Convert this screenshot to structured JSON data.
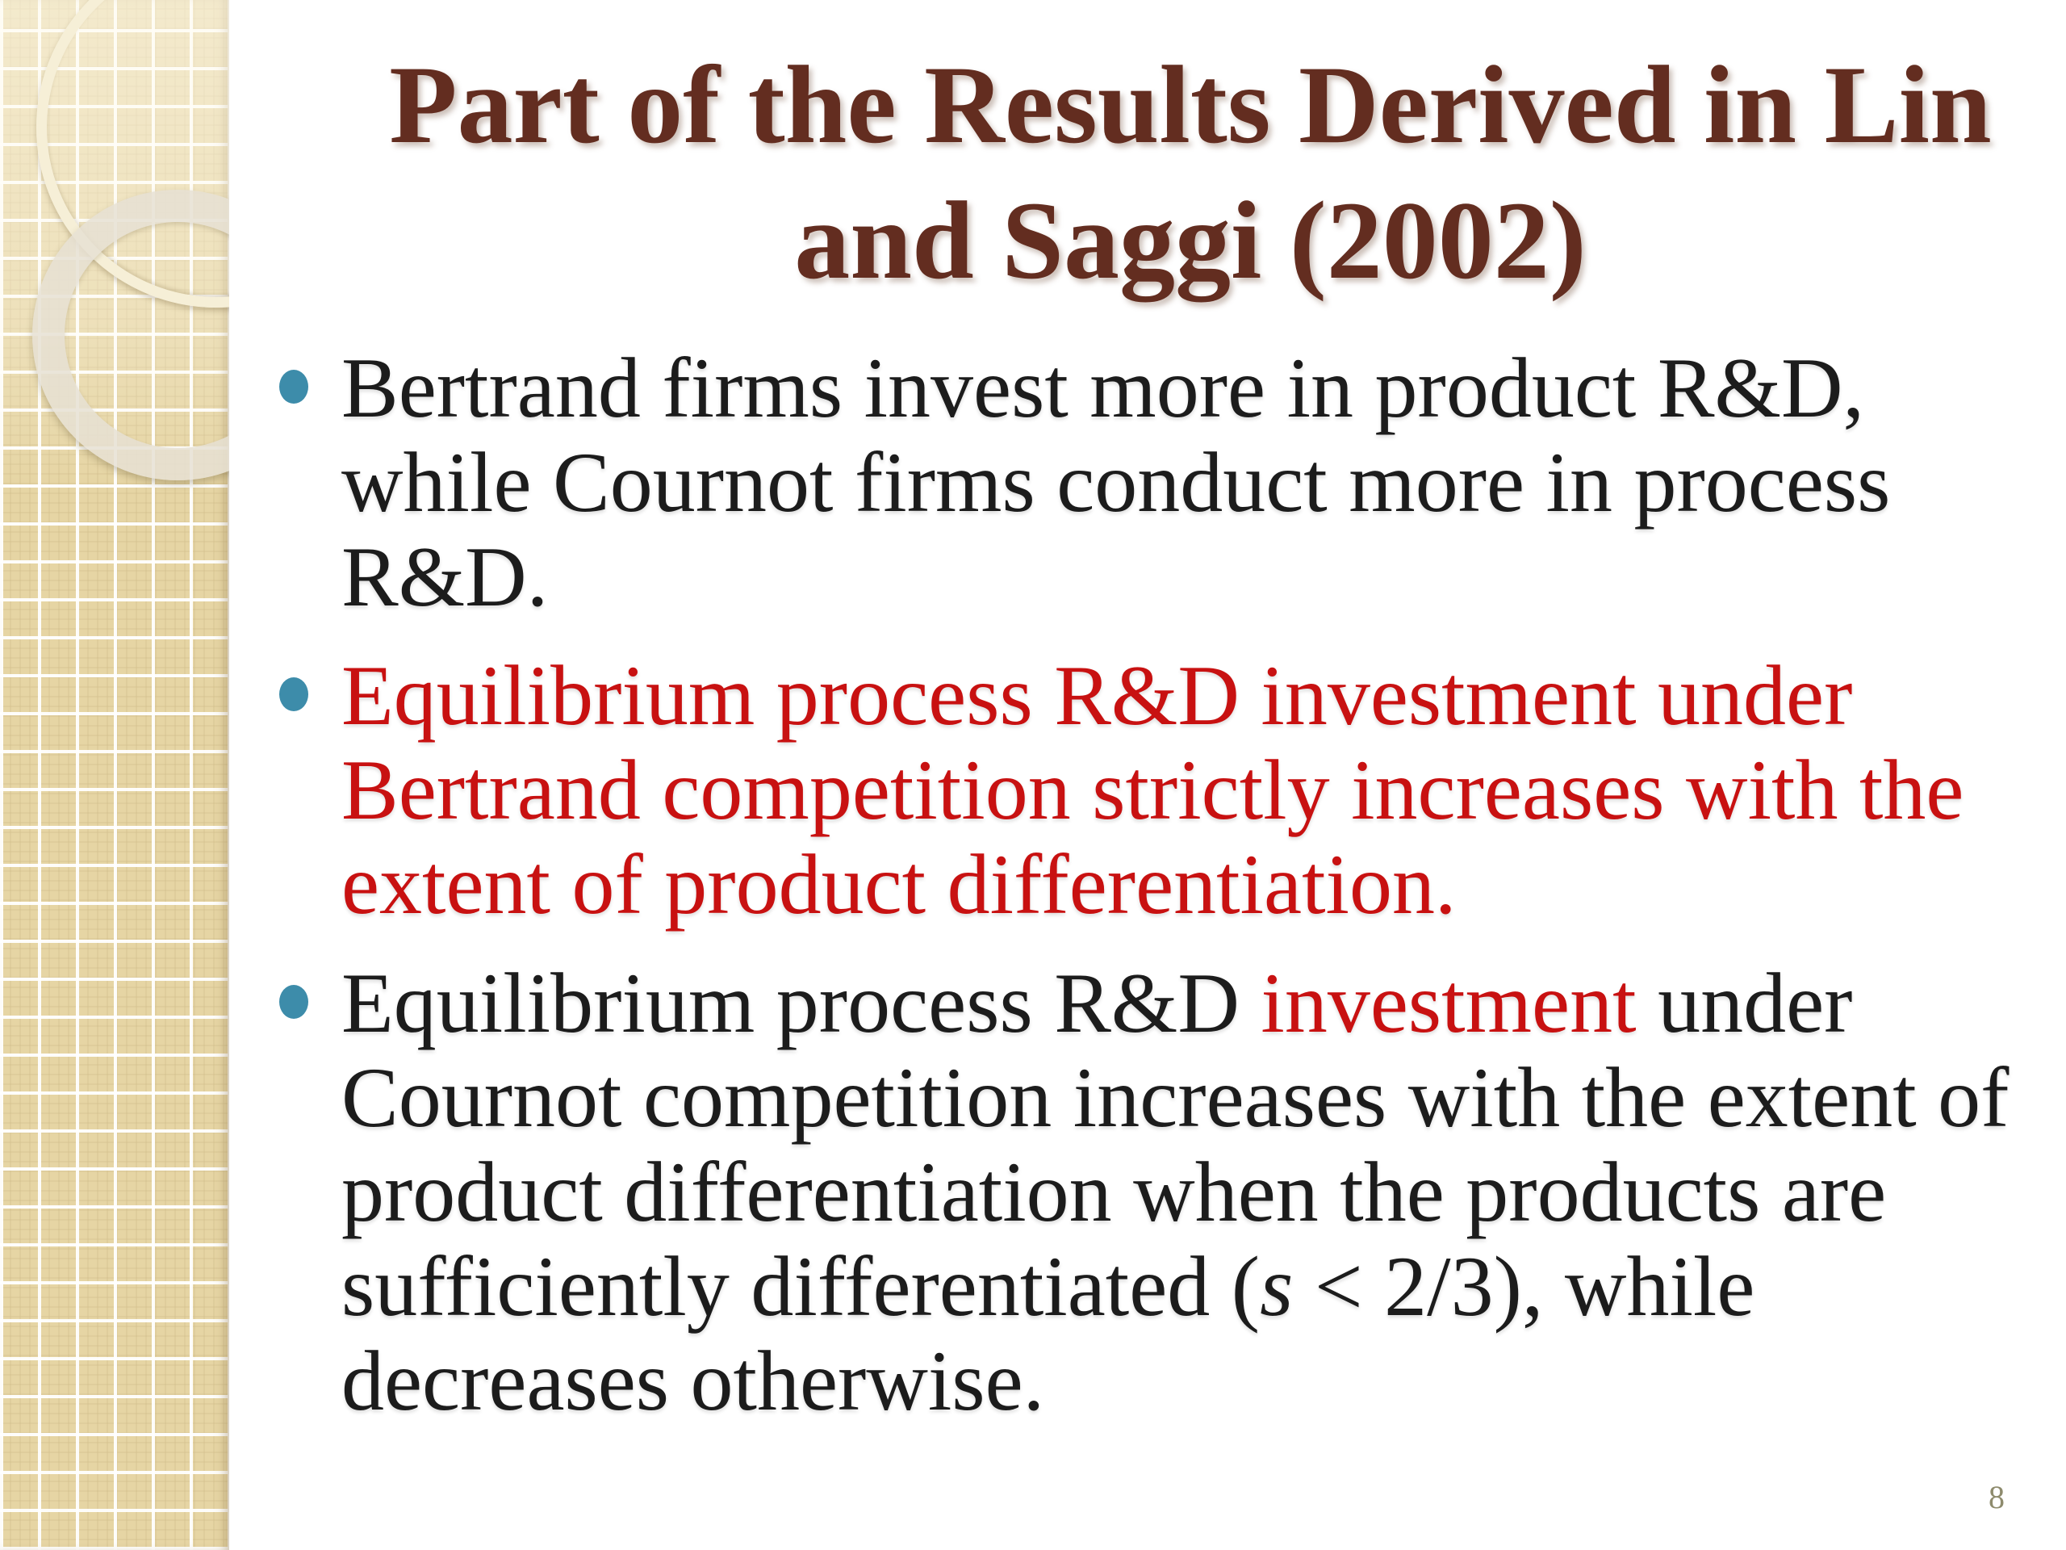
{
  "slide": {
    "title_line1": "Part of the Results Derived in Lin",
    "title_line2": "and Saggi (2002)",
    "page_number": "8",
    "colors": {
      "title": "#632d20",
      "body": "#1c1c1c",
      "red": "#c81111",
      "bullet": "#3d8caa",
      "sidebar_tan": "#e6d5a4",
      "page_number": "#8e8b6d"
    },
    "bullets": [
      {
        "segments": [
          {
            "text": "Bertrand firms invest more in product R&D, while Cournot firms conduct more in process R&D.",
            "color": "body"
          }
        ]
      },
      {
        "segments": [
          {
            "text": "Equilibrium process R&D investment under Bertrand competition strictly increases with the extent of product differentiation.",
            "color": "red"
          }
        ]
      },
      {
        "segments": [
          {
            "text": "Equilibrium process R&D ",
            "color": "body"
          },
          {
            "text": "investment",
            "color": "red"
          },
          {
            "text": " under Cournot competition increases with the extent of product differentiation when the products are sufficiently differentiated (",
            "color": "body"
          },
          {
            "text": "s",
            "color": "body",
            "italic": true
          },
          {
            "text": " < 2/3), while decreases otherwise.",
            "color": "body"
          }
        ]
      }
    ]
  }
}
